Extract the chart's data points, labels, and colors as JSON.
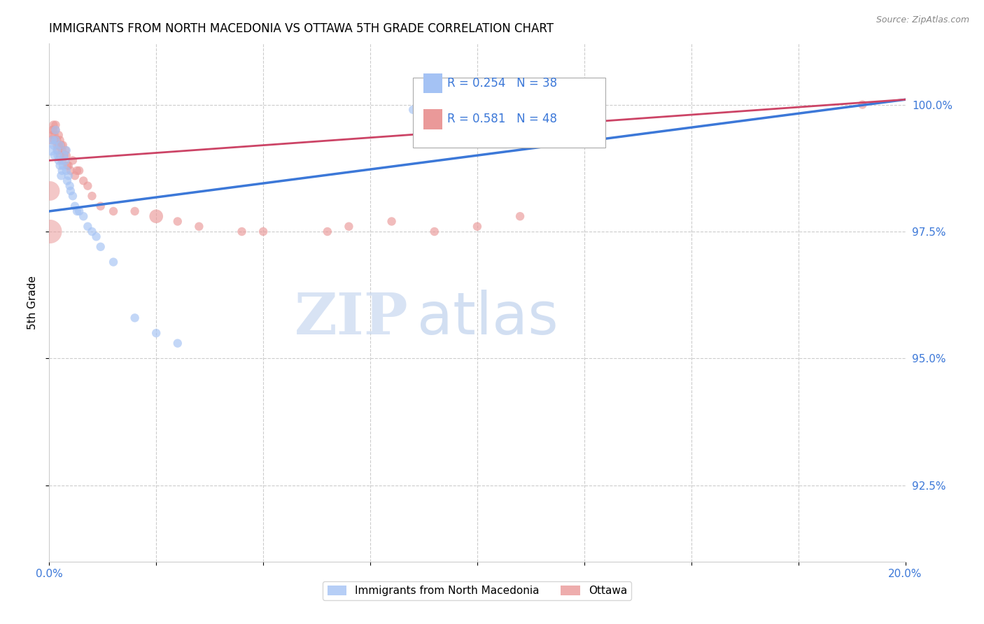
{
  "title": "IMMIGRANTS FROM NORTH MACEDONIA VS OTTAWA 5TH GRADE CORRELATION CHART",
  "source": "Source: ZipAtlas.com",
  "ylabel": "5th Grade",
  "yticks": [
    92.5,
    95.0,
    97.5,
    100.0
  ],
  "ytick_labels": [
    "92.5%",
    "95.0%",
    "97.5%",
    "100.0%"
  ],
  "xlim": [
    0.0,
    20.0
  ],
  "ylim": [
    91.0,
    101.2
  ],
  "blue_R": 0.254,
  "blue_N": 38,
  "pink_R": 0.581,
  "pink_N": 48,
  "blue_color": "#a4c2f4",
  "pink_color": "#ea9999",
  "blue_line_color": "#3c78d8",
  "pink_line_color": "#cc4466",
  "legend_blue_label": "Immigrants from North Macedonia",
  "legend_pink_label": "Ottawa",
  "watermark_zip": "ZIP",
  "watermark_atlas": "atlas",
  "blue_x": [
    0.05,
    0.08,
    0.1,
    0.12,
    0.15,
    0.15,
    0.18,
    0.2,
    0.22,
    0.25,
    0.25,
    0.28,
    0.3,
    0.32,
    0.35,
    0.38,
    0.4,
    0.4,
    0.42,
    0.45,
    0.48,
    0.5,
    0.55,
    0.6,
    0.65,
    0.7,
    0.8,
    0.9,
    1.0,
    1.1,
    1.2,
    1.5,
    2.0,
    2.5,
    3.0,
    8.5,
    11.0,
    12.5
  ],
  "blue_y": [
    99.1,
    99.3,
    99.2,
    99.0,
    99.3,
    99.5,
    99.1,
    99.0,
    98.9,
    99.2,
    98.8,
    98.6,
    98.7,
    98.8,
    99.0,
    98.9,
    98.7,
    99.1,
    98.5,
    98.6,
    98.4,
    98.3,
    98.2,
    98.0,
    97.9,
    97.9,
    97.8,
    97.6,
    97.5,
    97.4,
    97.2,
    96.9,
    95.8,
    95.5,
    95.3,
    99.9,
    99.9,
    100.0
  ],
  "blue_sizes": [
    120,
    80,
    80,
    80,
    80,
    80,
    80,
    80,
    80,
    80,
    80,
    80,
    80,
    80,
    80,
    80,
    80,
    80,
    80,
    80,
    80,
    80,
    80,
    80,
    80,
    80,
    80,
    80,
    80,
    80,
    80,
    80,
    80,
    80,
    80,
    80,
    80,
    80
  ],
  "pink_x": [
    0.05,
    0.07,
    0.08,
    0.1,
    0.1,
    0.12,
    0.12,
    0.15,
    0.15,
    0.18,
    0.18,
    0.2,
    0.22,
    0.22,
    0.25,
    0.25,
    0.28,
    0.3,
    0.3,
    0.32,
    0.35,
    0.38,
    0.4,
    0.42,
    0.45,
    0.5,
    0.55,
    0.6,
    0.65,
    0.7,
    0.8,
    0.9,
    1.0,
    1.2,
    1.5,
    2.0,
    2.5,
    3.0,
    3.5,
    4.5,
    5.0,
    6.5,
    7.0,
    8.0,
    9.0,
    10.0,
    11.0,
    19.0
  ],
  "pink_y": [
    99.3,
    99.5,
    99.4,
    99.6,
    99.5,
    99.4,
    99.3,
    99.6,
    99.5,
    99.3,
    99.2,
    99.1,
    99.4,
    99.2,
    99.3,
    99.0,
    99.2,
    99.1,
    98.9,
    99.2,
    99.0,
    99.1,
    99.0,
    98.8,
    98.8,
    98.7,
    98.9,
    98.6,
    98.7,
    98.7,
    98.5,
    98.4,
    98.2,
    98.0,
    97.9,
    97.9,
    97.8,
    97.7,
    97.6,
    97.5,
    97.5,
    97.5,
    97.6,
    97.7,
    97.5,
    97.6,
    97.8,
    100.0
  ],
  "pink_sizes": [
    80,
    80,
    80,
    80,
    80,
    80,
    80,
    80,
    80,
    80,
    80,
    80,
    80,
    80,
    80,
    80,
    80,
    80,
    80,
    80,
    80,
    80,
    80,
    80,
    80,
    80,
    80,
    80,
    80,
    80,
    80,
    80,
    80,
    80,
    80,
    80,
    200,
    80,
    80,
    80,
    80,
    80,
    80,
    80,
    80,
    80,
    80,
    80
  ]
}
